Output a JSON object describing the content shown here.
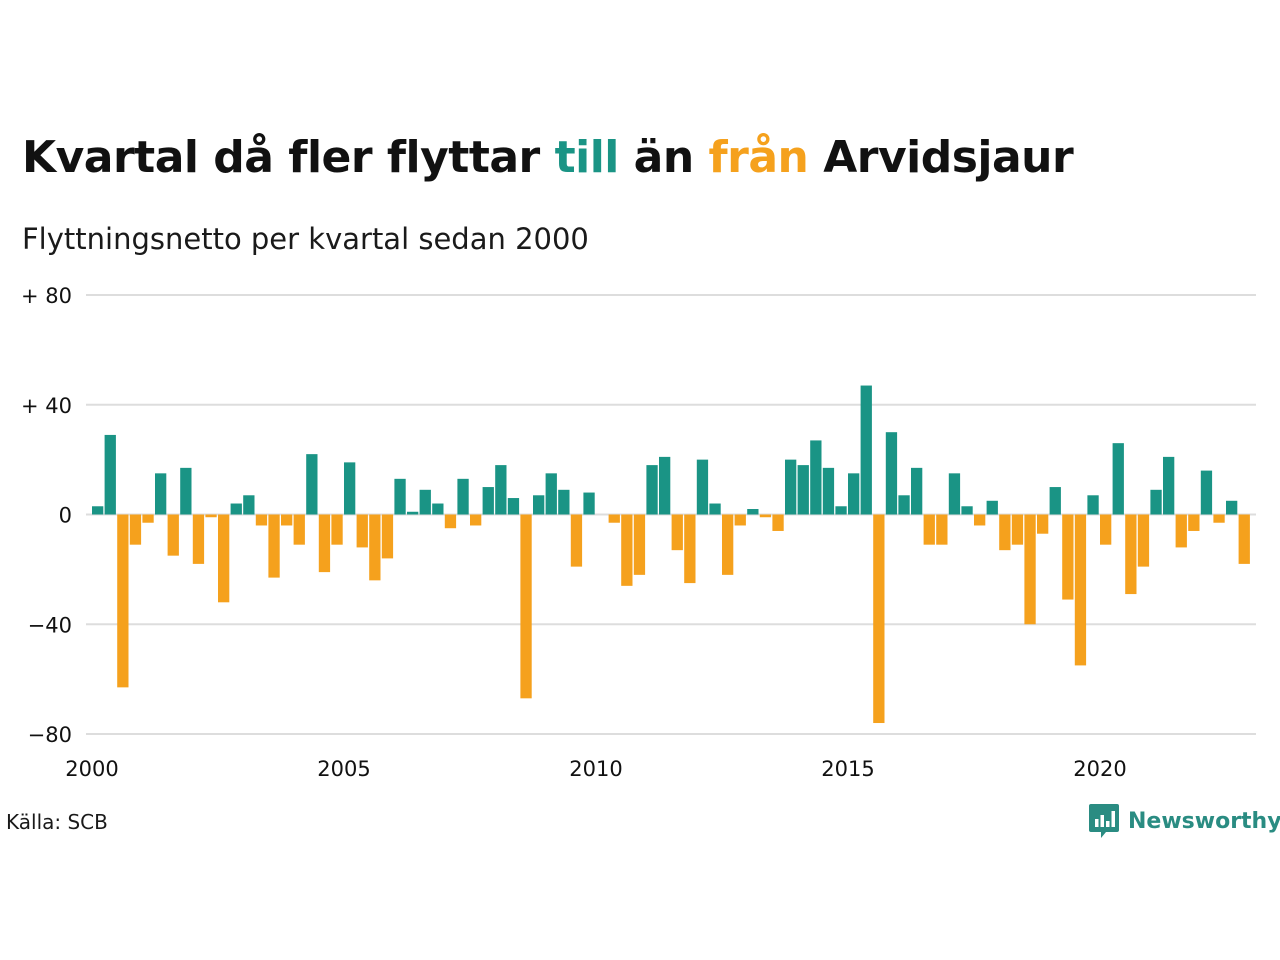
{
  "title": {
    "before": "Kvartal då fler flyttar ",
    "word_in": "till",
    "middle": " än ",
    "word_out": "från",
    "after": " Arvidsjaur"
  },
  "colors": {
    "positive": "#1a9485",
    "negative": "#f5a11d",
    "grid": "#dddddd",
    "brand": "#2a8c82"
  },
  "source": "Källa: SCB",
  "brand": {
    "name": "Newsworthy",
    "icon": "bar-chart-speech-bubble-icon"
  },
  "chart_data": {
    "type": "bar",
    "title": "Kvartal då fler flyttar till än från Arvidsjaur",
    "subtitle": "Flyttningsnetto per kvartal sedan 2000",
    "x_start_year": 2000,
    "periods_per_year": 4,
    "x_ticks": [
      "2000",
      "2005",
      "2010",
      "2015",
      "2020"
    ],
    "y_ticks": [
      {
        "value": 80,
        "label": "+ 80"
      },
      {
        "value": 40,
        "label": "+ 40"
      },
      {
        "value": 0,
        "label": "0"
      },
      {
        "value": -40,
        "label": "−40"
      },
      {
        "value": -80,
        "label": "−80"
      }
    ],
    "ylim": [
      -80,
      80
    ],
    "grid": true,
    "values": [
      3,
      29,
      -63,
      -11,
      -3,
      15,
      -15,
      17,
      -18,
      -1,
      -32,
      4,
      7,
      -4,
      -23,
      -4,
      -11,
      22,
      -21,
      -11,
      19,
      -12,
      -24,
      -16,
      13,
      1,
      9,
      4,
      -5,
      13,
      -4,
      10,
      18,
      6,
      -67,
      7,
      15,
      9,
      -19,
      8,
      0,
      -3,
      -26,
      -22,
      18,
      21,
      -13,
      -25,
      20,
      4,
      -22,
      -4,
      2,
      -1,
      -6,
      20,
      18,
      27,
      17,
      3,
      15,
      47,
      -76,
      30,
      7,
      17,
      -11,
      -11,
      15,
      3,
      -4,
      5,
      -13,
      -11,
      -40,
      -7,
      10,
      -31,
      -55,
      7,
      -11,
      26,
      -29,
      -19,
      9,
      21,
      -12,
      -6,
      16,
      -3,
      5,
      -18
    ]
  }
}
